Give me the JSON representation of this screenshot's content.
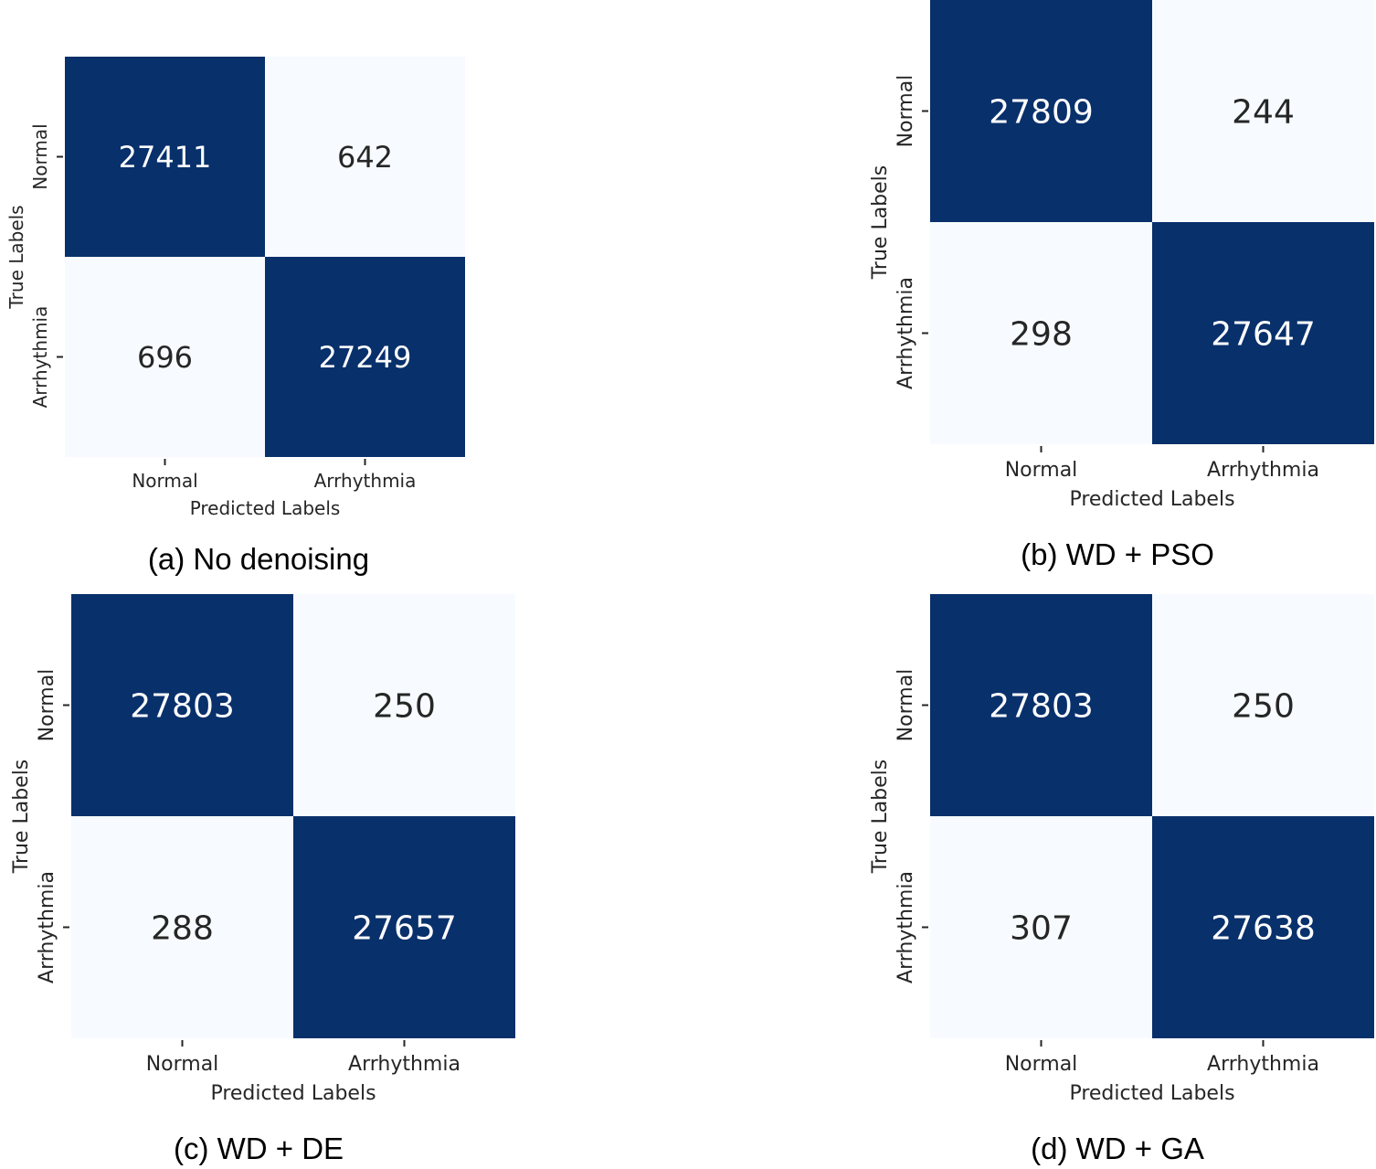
{
  "colors": {
    "high": "#08306b",
    "low": "#f7fbff",
    "text_dark": "#262626",
    "text_light": "#ffffff",
    "axis": "#262626"
  },
  "chart_data": [
    {
      "type": "heatmap",
      "caption": "(a) No denoising",
      "xlabel": "Predicted Labels",
      "ylabel": "True Labels",
      "x_categories": [
        "Normal",
        "Arrhythmia"
      ],
      "y_categories": [
        "Normal",
        "Arrhythmia"
      ],
      "values": [
        [
          27411,
          642
        ],
        [
          696,
          27249
        ]
      ]
    },
    {
      "type": "heatmap",
      "caption": "(b) WD + PSO",
      "xlabel": "Predicted Labels",
      "ylabel": "True Labels",
      "x_categories": [
        "Normal",
        "Arrhythmia"
      ],
      "y_categories": [
        "Normal",
        "Arrhythmia"
      ],
      "values": [
        [
          27809,
          244
        ],
        [
          298,
          27647
        ]
      ]
    },
    {
      "type": "heatmap",
      "caption": "(c) WD + DE",
      "xlabel": "Predicted Labels",
      "ylabel": "True Labels",
      "x_categories": [
        "Normal",
        "Arrhythmia"
      ],
      "y_categories": [
        "Normal",
        "Arrhythmia"
      ],
      "values": [
        [
          27803,
          250
        ],
        [
          288,
          27657
        ]
      ]
    },
    {
      "type": "heatmap",
      "caption": "(d) WD + GA",
      "xlabel": "Predicted Labels",
      "ylabel": "True Labels",
      "x_categories": [
        "Normal",
        "Arrhythmia"
      ],
      "y_categories": [
        "Normal",
        "Arrhythmia"
      ],
      "values": [
        [
          27803,
          250
        ],
        [
          307,
          27638
        ]
      ]
    }
  ]
}
